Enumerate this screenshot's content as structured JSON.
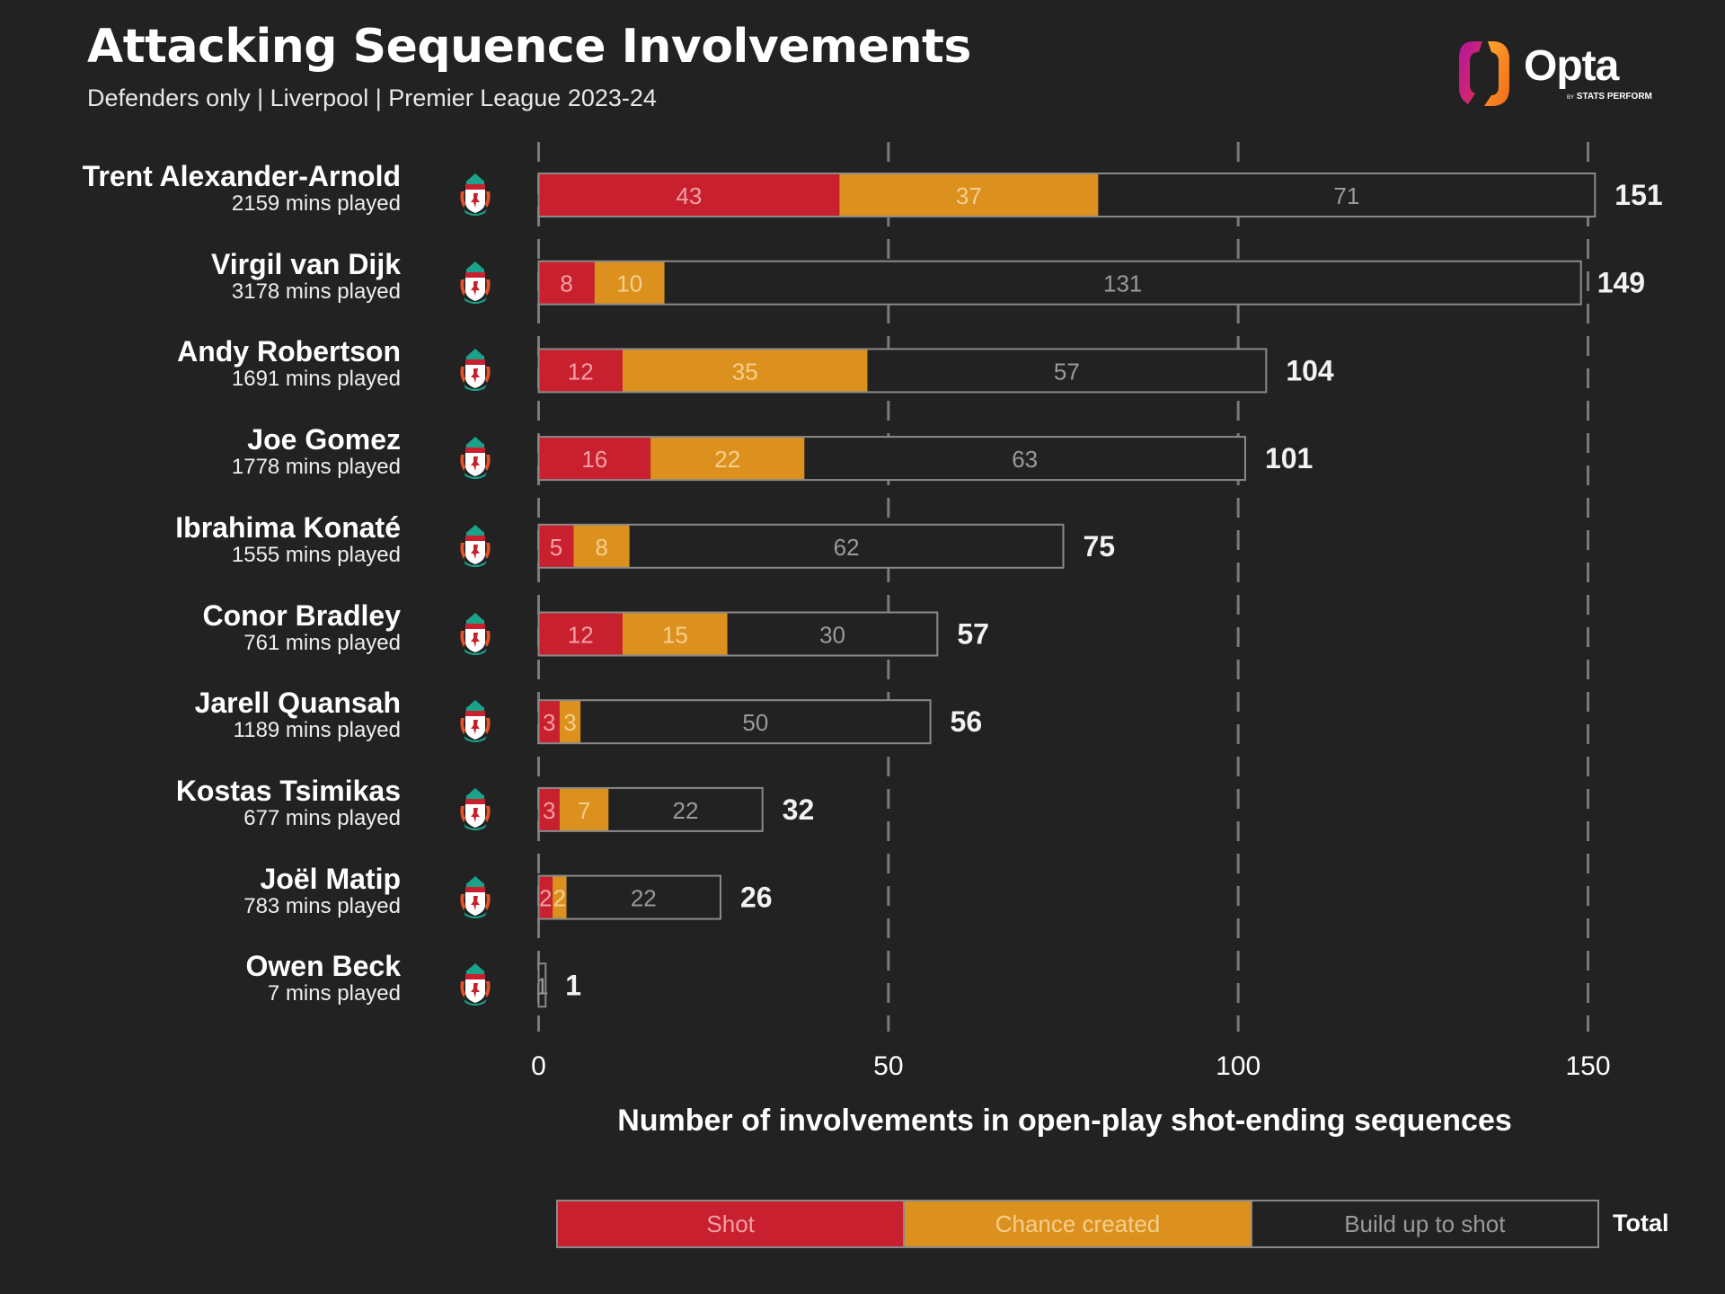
{
  "header": {
    "title": "Attacking Sequence Involvements",
    "subtitle": "Defenders only | Liverpool | Premier League 2023-24"
  },
  "logo": {
    "name": "Opta",
    "by": "BY",
    "tagline": "STATS PERFORM"
  },
  "colors": {
    "background": "#222222",
    "shot": "#c8202e",
    "chance_created": "#dc901e",
    "build_up": "#222222",
    "bar_outline": "#8a8a8a",
    "gridline": "#7a7a7a"
  },
  "club_icon": "liverpool-crest-icon",
  "chart_data": {
    "type": "bar",
    "orientation": "horizontal",
    "stacked": true,
    "title": "Attacking Sequence Involvements",
    "subtitle": "Defenders only | Liverpool | Premier League 2023-24",
    "xlabel": "Number of involvements in open-play shot-ending sequences",
    "ylabel": "",
    "xlim": [
      0,
      150
    ],
    "xticks": [
      0,
      50,
      100,
      150
    ],
    "grid": "vertical-dashed",
    "legend_position": "bottom",
    "categories": [
      "Trent Alexander-Arnold",
      "Virgil van Dijk",
      "Andy Robertson",
      "Joe Gomez",
      "Ibrahima Konaté",
      "Conor Bradley",
      "Jarell Quansah",
      "Kostas Tsimikas",
      "Joël Matip",
      "Owen Beck"
    ],
    "minutes_played": [
      2159,
      3178,
      1691,
      1778,
      1555,
      761,
      1189,
      677,
      783,
      7
    ],
    "minutes_suffix": "mins played",
    "series": [
      {
        "name": "Shot",
        "values": [
          43,
          8,
          12,
          16,
          5,
          12,
          3,
          3,
          2,
          0
        ]
      },
      {
        "name": "Chance created",
        "values": [
          37,
          10,
          35,
          22,
          8,
          15,
          3,
          7,
          2,
          0
        ]
      },
      {
        "name": "Build up to shot",
        "values": [
          71,
          131,
          57,
          63,
          62,
          30,
          50,
          22,
          22,
          1
        ]
      }
    ],
    "totals": [
      151,
      149,
      104,
      101,
      75,
      57,
      56,
      32,
      26,
      1
    ],
    "legend": {
      "items": [
        "Shot",
        "Chance created",
        "Build up to shot"
      ],
      "total_label": "Total"
    }
  }
}
